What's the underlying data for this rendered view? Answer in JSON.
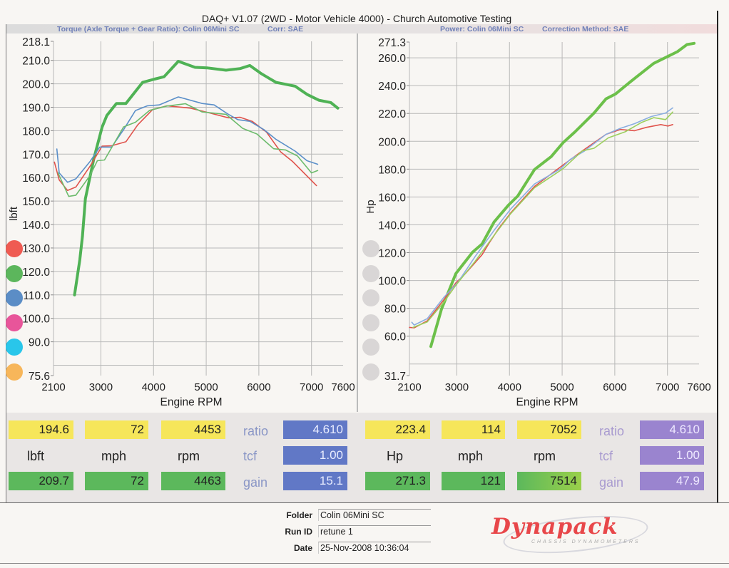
{
  "header": {
    "title": "DAQ+ V1.07 (2WD - Motor Vehicle 4000) - Church Automotive Testing",
    "left_subtitle": "Torque (Axle Torque + Gear Ratio): Colin 06Mini SC",
    "left_corr": "Corr: SAE",
    "right_subtitle": "Power: Colin 06Mini SC",
    "right_corr": "Correction Method: SAE"
  },
  "legend_left_colors": [
    "#ef5b52",
    "#5cb65c",
    "#5b8dc6",
    "#e8559a",
    "#29c6ea",
    "#f7b65a"
  ],
  "legend_right_colors": [
    "#d9d6d6",
    "#d9d6d6",
    "#d9d6d6",
    "#d9d6d6",
    "#d9d6d6",
    "#d9d6d6"
  ],
  "chart_data": [
    {
      "type": "line",
      "title": "Torque (Axle Torque + Gear Ratio): Colin 06Mini SC",
      "xlabel": "Engine RPM",
      "ylabel": "lbft",
      "xlim": [
        2100,
        7600
      ],
      "ylim": [
        75.6,
        218.1
      ],
      "xticks": [
        2100,
        3000,
        4000,
        5000,
        6000,
        7000,
        7600
      ],
      "yticks": [
        "218.1",
        "210.0",
        "200.0",
        "190.0",
        "180.0",
        "170.0",
        "160.0",
        "150.0",
        "140.0",
        "130.0",
        "120.0",
        "110.0",
        "100.0",
        "90.0",
        "75.6"
      ],
      "ygrid": [
        80,
        90,
        100,
        110,
        120,
        130,
        140,
        150,
        160,
        170,
        180,
        190,
        200,
        210
      ],
      "grid": true,
      "series": [
        {
          "color": "#4fb255",
          "x": [
            2500,
            2600,
            2650,
            2706,
            2865,
            3023,
            3113,
            3295,
            3475,
            3792,
            4018,
            4200,
            4471,
            4788,
            5014,
            5376,
            5647,
            5828,
            6054,
            6326,
            6688,
            6914,
            7140,
            7367,
            7500
          ],
          "y": [
            110,
            125,
            135,
            151,
            168,
            181.5,
            186.5,
            191.6,
            191.6,
            200.6,
            202,
            203,
            209.6,
            207,
            206.8,
            205.8,
            206.5,
            207.8,
            204.2,
            200.6,
            199,
            195.5,
            193,
            192,
            189.6
          ]
        },
        {
          "color": "#e0534c",
          "x": [
            2118,
            2208,
            2367,
            2525,
            2797,
            3023,
            3204,
            3475,
            3700,
            3982,
            4253,
            4705,
            5059,
            5421,
            5647,
            5873,
            6145,
            6416,
            6643,
            6869,
            7095
          ],
          "y": [
            166.6,
            159,
            154.5,
            156,
            165,
            173.4,
            173.6,
            175.3,
            182.5,
            189,
            190.6,
            189.6,
            187.6,
            185.5,
            185.7,
            184,
            179.4,
            170.9,
            166.8,
            161.7,
            156.6
          ]
        },
        {
          "color": "#5b8fc9",
          "x": [
            2163,
            2208,
            2367,
            2525,
            2797,
            2978,
            3204,
            3430,
            3656,
            3882,
            4108,
            4471,
            4923,
            5149,
            5421,
            5602,
            5828,
            6100,
            6326,
            6688,
            6914,
            7118
          ],
          "y": [
            172.2,
            162,
            158,
            159.5,
            167,
            173,
            173,
            180.4,
            188.6,
            190.6,
            191,
            194.4,
            191.6,
            191,
            187,
            184.7,
            184,
            180.4,
            176.3,
            171.3,
            167.2,
            165.7
          ]
        },
        {
          "color": "#6cbb6c",
          "x": [
            2186,
            2389,
            2525,
            2797,
            2933,
            3068,
            3249,
            3430,
            3656,
            3927,
            4253,
            4606,
            4923,
            5376,
            5692,
            5963,
            6281,
            6507,
            6733,
            7000,
            7118
          ],
          "y": [
            162,
            152,
            152.5,
            161,
            167.2,
            167.5,
            174.5,
            181.6,
            183.6,
            188.7,
            190.5,
            191.5,
            188,
            187,
            181,
            178.6,
            172.3,
            171.8,
            169.2,
            162,
            163
          ]
        }
      ]
    },
    {
      "type": "line",
      "title": "Power: Colin 06Mini SC",
      "xlabel": "Engine RPM",
      "ylabel": "Hp",
      "xlim": [
        2100,
        7600
      ],
      "ylim": [
        31.7,
        271.3
      ],
      "xticks": [
        2100,
        3000,
        4000,
        5000,
        6000,
        7000,
        7600
      ],
      "yticks": [
        "271.3",
        "260.0",
        "240.0",
        "220.0",
        "200.0",
        "180.0",
        "160.0",
        "140.0",
        "120.0",
        "100.0",
        "80.0",
        "60.0",
        "31.7"
      ],
      "ygrid": [
        40,
        60,
        80,
        100,
        120,
        140,
        160,
        180,
        200,
        220,
        240,
        260
      ],
      "grid": true,
      "series": [
        {
          "color": "#6cc04a",
          "x": [
            2507,
            2710,
            2982,
            3299,
            3480,
            3706,
            3977,
            4158,
            4475,
            4792,
            5018,
            5244,
            5606,
            5833,
            6014,
            6285,
            6738,
            7009,
            7190,
            7371,
            7507
          ],
          "y": [
            52.6,
            79.5,
            105,
            120.3,
            126.3,
            142,
            154,
            160.7,
            179.7,
            189,
            199,
            206.8,
            220.3,
            230.5,
            234,
            242.4,
            256,
            261,
            264.4,
            269.5,
            270.4
          ]
        },
        {
          "color": "#e0534c",
          "x": [
            2100,
            2190,
            2439,
            2756,
            2982,
            3163,
            3480,
            3615,
            3796,
            4023,
            4475,
            5018,
            5380,
            5833,
            6104,
            6376,
            6602,
            6874,
            7009,
            7100
          ],
          "y": [
            66.3,
            66,
            71,
            86.3,
            98.3,
            105,
            118.6,
            127,
            137.4,
            148.6,
            167.5,
            183,
            193,
            205,
            208.5,
            207.6,
            210,
            212,
            211,
            212
          ]
        },
        {
          "color": "#8aaee0",
          "x": [
            2145,
            2190,
            2439,
            2756,
            3027,
            3344,
            3706,
            4023,
            4475,
            4973,
            5154,
            5425,
            5833,
            6104,
            6376,
            6692,
            6964,
            7100
          ],
          "y": [
            70,
            68,
            72.6,
            88,
            99,
            117,
            136,
            151.4,
            169.3,
            180.3,
            187,
            193,
            205,
            209.3,
            212.7,
            217.8,
            220.3,
            224
          ]
        },
        {
          "color": "#9ccf5e",
          "x": [
            2167,
            2439,
            2756,
            2982,
            3344,
            3706,
            4023,
            4475,
            5018,
            5380,
            5606,
            5878,
            6195,
            6511,
            6738,
            6964,
            7100
          ],
          "y": [
            66.3,
            70.2,
            84.6,
            96.6,
            113.6,
            132.4,
            148,
            166.6,
            180.3,
            193,
            195,
            202.5,
            206.8,
            213.6,
            217,
            215.6,
            221
          ]
        }
      ]
    }
  ],
  "readouts": {
    "left": {
      "top": [
        "194.6",
        "72",
        "4453"
      ],
      "units": [
        "lbft",
        "mph",
        "rpm"
      ],
      "bottom": [
        "209.7",
        "72",
        "4463"
      ],
      "ratio_label": "ratio",
      "ratio": "4.610",
      "tcf_label": "tcf",
      "tcf": "1.00",
      "gain_label": "gain",
      "gain": "15.1"
    },
    "right": {
      "top": [
        "223.4",
        "114",
        "7052"
      ],
      "units": [
        "Hp",
        "mph",
        "rpm"
      ],
      "bottom": [
        "271.3",
        "121",
        "7514"
      ],
      "ratio_label": "ratio",
      "ratio": "4.610",
      "tcf_label": "tcf",
      "tcf": "1.00",
      "gain_label": "gain",
      "gain": "47.9"
    }
  },
  "info": {
    "folder_label": "Folder",
    "folder": "Colin 06Mini SC",
    "runid_label": "Run ID",
    "runid": "retune 1",
    "date_label": "Date",
    "date": "25-Nov-2008  10:36:04"
  },
  "logo": {
    "brand": "Dynapack",
    "tagline": "CHASSIS DYNAMOMETERS",
    "color": "#e8474a"
  }
}
